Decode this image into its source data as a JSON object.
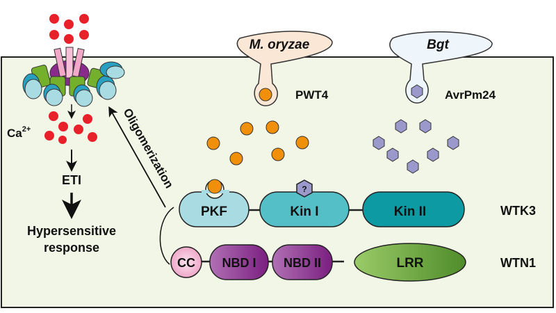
{
  "labels": {
    "ca": "Ca",
    "ca_sup": "2+",
    "eti": "ETI",
    "hr_line1": "Hypersensitive",
    "hr_line2": "response",
    "oligomerization": "Oligomerization",
    "pathogen1": "M. oryzae",
    "pathogen2": "Bgt",
    "effector1": "PWT4",
    "effector2": "AvrPm24",
    "unknown_mark": "?"
  },
  "proteins": {
    "wtk3": {
      "name": "WTK3",
      "domains": [
        "PKF",
        "Kin I",
        "Kin II"
      ]
    },
    "wtn1": {
      "name": "WTN1",
      "domains": [
        "CC",
        "NBD I",
        "NBD II",
        "LRR"
      ]
    }
  },
  "colors": {
    "cell": "#f2f6e6",
    "calcium": "#e8202a",
    "pwt4": "#f0900a",
    "avrpm24": "#9b98cc",
    "pkf": "#a9dbe2",
    "kin1": "#55bfc8",
    "kin2": "#0e9aa2",
    "cc": "#f4c0d8",
    "nbd": "#8a2a8c",
    "lrr": "#6aa83c"
  }
}
